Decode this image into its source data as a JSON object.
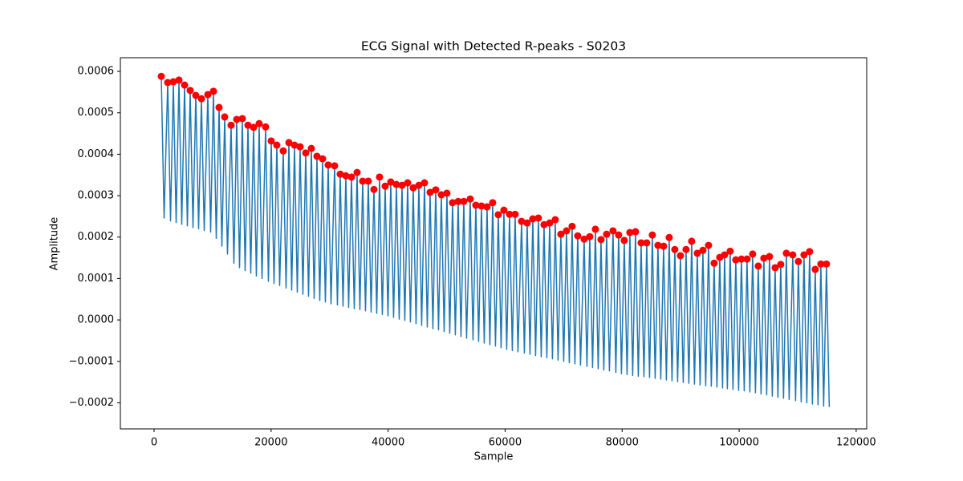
{
  "chart_data": {
    "type": "line",
    "title": "ECG Signal with Detected R-peaks - S0203",
    "xlabel": "Sample",
    "ylabel": "Amplitude",
    "xlim": [
      -5760,
      121800
    ],
    "ylim": [
      -0.000263,
      0.000633
    ],
    "xticks": [
      0,
      20000,
      40000,
      60000,
      80000,
      100000,
      120000
    ],
    "yticks": [
      {
        "value": -0.0002,
        "label": "−0.0002"
      },
      {
        "value": -0.0001,
        "label": "−0.0001"
      },
      {
        "value": 0,
        "label": "0.0000"
      },
      0.0001,
      0.0002,
      0.0003,
      0.0004,
      0.0005,
      0.0006
    ],
    "grid": false,
    "series": [
      {
        "type": "line",
        "color": "#1f77b4",
        "x": [
          1234,
          1714,
          2331,
          2811,
          3291,
          3771,
          4251,
          4731,
          5211,
          5691,
          6171,
          6651,
          7131,
          7611,
          8091,
          8571,
          9188,
          9668,
          10148,
          10628,
          11108,
          11588,
          12068,
          12548,
          13165,
          13645,
          14125,
          14605,
          15085,
          15565,
          16045,
          16525,
          17005,
          17485,
          17965,
          18445,
          19062,
          19542,
          20022,
          20502,
          20982,
          21462,
          22080,
          22560,
          23040,
          23520,
          24000,
          24480,
          24959,
          25439,
          25919,
          26399,
          26879,
          27359,
          27839,
          28319,
          28799,
          29279,
          29759,
          30239,
          30856,
          31336,
          31816,
          32296,
          32776,
          33256,
          33736,
          34216,
          34696,
          35176,
          35656,
          36136,
          36616,
          37096,
          37576,
          38056,
          38536,
          39016,
          39496,
          39976,
          40456,
          40936,
          41416,
          41896,
          42376,
          42856,
          43336,
          43816,
          44296,
          44776,
          45256,
          45736,
          46216,
          46696,
          47176,
          47656,
          48136,
          48616,
          49096,
          49576,
          50056,
          50536,
          51016,
          51496,
          51976,
          52456,
          52936,
          53416,
          54033,
          54513,
          54993,
          55473,
          55953,
          56433,
          56913,
          57393,
          57873,
          58353,
          58833,
          59313,
          59793,
          60273,
          60753,
          61233,
          61713,
          62193,
          62810,
          63290,
          63770,
          64250,
          64730,
          65210,
          65690,
          66170,
          66650,
          67130,
          67610,
          68090,
          68570,
          69050,
          69530,
          70010,
          70490,
          70970,
          71450,
          71930,
          72410,
          72890,
          73507,
          73987,
          74467,
          74947,
          75427,
          75907,
          76387,
          76867,
          77347,
          77827,
          78444,
          78924,
          79404,
          79884,
          80364,
          80844,
          81324,
          81804,
          82284,
          82764,
          83244,
          83724,
          84204,
          84684,
          85164,
          85644,
          86124,
          86604,
          87084,
          87564,
          88044,
          88524,
          89004,
          89484,
          89964,
          90444,
          90924,
          91404,
          91884,
          92364,
          92844,
          93324,
          93804,
          94284,
          94764,
          95244,
          95724,
          96204,
          96684,
          97164,
          97507,
          97987,
          98467,
          98947,
          99427,
          99907,
          100387,
          100867,
          101347,
          101827,
          102307,
          102787,
          103267,
          103747,
          104226,
          104706,
          105186,
          105666,
          106146,
          106626,
          107106,
          107586,
          108066,
          108546,
          109163,
          109643,
          110123,
          110603,
          111083,
          111563,
          112043,
          112523,
          113003,
          113483,
          113963,
          114443,
          114923,
          115403
        ],
        "values": [
          0.000588,
          0.000246,
          0.000573,
          0.000239,
          0.000575,
          0.000235,
          0.000579,
          0.000231,
          0.000567,
          0.000227,
          0.000554,
          0.000223,
          0.000542,
          0.00022,
          0.000534,
          0.000216,
          0.000544,
          0.000212,
          0.000552,
          0.000197,
          0.000513,
          0.000178,
          0.00049,
          0.000159,
          0.00047,
          0.000137,
          0.000484,
          0.000126,
          0.000486,
          0.000119,
          0.00047,
          0.000113,
          0.000465,
          0.000106,
          0.000474,
          0.0001,
          0.000466,
          9.3e-05,
          0.000432,
          8.8e-05,
          0.000422,
          8.3e-05,
          0.000408,
          7.7e-05,
          0.000428,
          7.2e-05,
          0.000422,
          6.7e-05,
          0.000418,
          6.2e-05,
          0.000403,
          5.7e-05,
          0.000414,
          5.2e-05,
          0.000395,
          4.7e-05,
          0.000389,
          4.3e-05,
          0.000374,
          3.9e-05,
          0.000372,
          3.6e-05,
          0.000352,
          3.3e-05,
          0.000348,
          3e-05,
          0.000345,
          2.7e-05,
          0.000356,
          2.5e-05,
          0.000335,
          2.2e-05,
          0.000335,
          1.9e-05,
          0.000315,
          1.6e-05,
          0.000345,
          1.3e-05,
          0.000323,
          1e-05,
          0.000333,
          6e-06,
          0.000327,
          2e-06,
          0.000325,
          -1e-06,
          0.000331,
          -5e-06,
          0.000319,
          -9e-06,
          0.000325,
          -1.3e-05,
          0.000331,
          -1.7e-05,
          0.000308,
          -2.1e-05,
          0.000314,
          -2.4e-05,
          0.000302,
          -2.8e-05,
          0.000306,
          -3.2e-05,
          0.000283,
          -3.6e-05,
          0.000286,
          -4e-05,
          0.000286,
          -4.4e-05,
          0.000292,
          -4.8e-05,
          0.000277,
          -5.2e-05,
          0.000275,
          -5.6e-05,
          0.000273,
          -6e-05,
          0.000283,
          -6.3e-05,
          0.000254,
          -6.7e-05,
          0.000265,
          -7.1e-05,
          0.000255,
          -7.4e-05,
          0.000255,
          -7.7e-05,
          0.000238,
          -8e-05,
          0.000234,
          -8.3e-05,
          0.000244,
          -8.6e-05,
          0.000246,
          -8.9e-05,
          0.00023,
          -9.1e-05,
          0.000234,
          -9.4e-05,
          0.000242,
          -9.7e-05,
          0.000207,
          -0.0001,
          0.000215,
          -0.000103,
          0.000226,
          -0.000106,
          0.000203,
          -0.000109,
          0.000195,
          -0.000112,
          0.000201,
          -0.000115,
          0.000219,
          -0.000118,
          0.000194,
          -0.000121,
          0.000207,
          -0.000123,
          0.000215,
          -0.000127,
          0.000205,
          -0.00013,
          0.000192,
          -0.000132,
          0.000211,
          -0.000134,
          0.000213,
          -0.000136,
          0.000186,
          -0.000137,
          0.000186,
          -0.000139,
          0.000205,
          -0.000141,
          0.00018,
          -0.000143,
          0.000178,
          -0.000145,
          0.000199,
          -0.000147,
          0.00017,
          -0.000149,
          0.000155,
          -0.000151,
          0.00017,
          -0.000153,
          0.00019,
          -0.000155,
          0.000161,
          -0.000157,
          0.000168,
          -0.000159,
          0.00018,
          -0.00016,
          0.000137,
          -0.000162,
          0.000151,
          -0.000164,
          0.000157,
          -0.000166,
          0.000166,
          -0.000168,
          0.000145,
          -0.00017,
          0.000147,
          -0.000171,
          0.000147,
          -0.000174,
          0.000159,
          -0.000176,
          0.00013,
          -0.000179,
          0.000149,
          -0.000181,
          0.000153,
          -0.000184,
          0.000126,
          -0.000187,
          0.000134,
          -0.000189,
          0.000161,
          -0.000192,
          0.000157,
          -0.000195,
          0.000141,
          -0.000198,
          0.000157,
          -0.0002,
          0.000165,
          -0.000203,
          0.000122,
          -0.000205,
          0.000135,
          -0.000208,
          0.000135,
          -0.00021
        ]
      },
      {
        "type": "scatter",
        "color": "#ff0000",
        "x": [
          1234,
          2331,
          3291,
          4251,
          5211,
          6171,
          7131,
          8091,
          9188,
          10148,
          11108,
          12068,
          13165,
          14125,
          15085,
          16045,
          17005,
          17965,
          19062,
          20022,
          20982,
          22080,
          23040,
          24000,
          24959,
          25919,
          26879,
          27839,
          28799,
          29759,
          30856,
          31816,
          32776,
          33736,
          34696,
          35656,
          36616,
          37576,
          38536,
          39496,
          40456,
          41416,
          42376,
          43336,
          44296,
          45256,
          46216,
          47176,
          48136,
          49096,
          50056,
          51016,
          51976,
          52936,
          54033,
          54993,
          55953,
          56913,
          57873,
          58833,
          59793,
          60753,
          61713,
          62810,
          63770,
          64730,
          65690,
          66650,
          67610,
          68570,
          69530,
          70490,
          71450,
          72410,
          73507,
          74467,
          75427,
          76387,
          77347,
          78444,
          79404,
          80364,
          81324,
          82284,
          83244,
          84204,
          85164,
          86124,
          87084,
          88044,
          89004,
          89964,
          90924,
          91884,
          92844,
          93804,
          94764,
          95724,
          96684,
          97507,
          98467,
          99427,
          100387,
          101347,
          102307,
          103267,
          104226,
          105186,
          106146,
          107106,
          108066,
          109163,
          110123,
          111083,
          112043,
          113003,
          113963,
          114923
        ],
        "values": [
          0.000588,
          0.000573,
          0.000575,
          0.000579,
          0.000567,
          0.000554,
          0.000542,
          0.000534,
          0.000544,
          0.000552,
          0.000513,
          0.00049,
          0.00047,
          0.000484,
          0.000486,
          0.00047,
          0.000465,
          0.000474,
          0.000466,
          0.000432,
          0.000422,
          0.000408,
          0.000428,
          0.000422,
          0.000418,
          0.000403,
          0.000414,
          0.000395,
          0.000389,
          0.000374,
          0.000372,
          0.000352,
          0.000348,
          0.000345,
          0.000356,
          0.000335,
          0.000335,
          0.000315,
          0.000345,
          0.000323,
          0.000333,
          0.000327,
          0.000325,
          0.000331,
          0.000319,
          0.000325,
          0.000331,
          0.000308,
          0.000314,
          0.000302,
          0.000306,
          0.000283,
          0.000286,
          0.000286,
          0.000292,
          0.000277,
          0.000275,
          0.000273,
          0.000283,
          0.000254,
          0.000265,
          0.000255,
          0.000255,
          0.000238,
          0.000234,
          0.000244,
          0.000246,
          0.00023,
          0.000234,
          0.000242,
          0.000207,
          0.000215,
          0.000226,
          0.000203,
          0.000195,
          0.000201,
          0.000219,
          0.000194,
          0.000207,
          0.000215,
          0.000205,
          0.000192,
          0.000211,
          0.000213,
          0.000186,
          0.000186,
          0.000205,
          0.00018,
          0.000178,
          0.000199,
          0.00017,
          0.000155,
          0.00017,
          0.00019,
          0.000161,
          0.000168,
          0.00018,
          0.000137,
          0.000151,
          0.000157,
          0.000166,
          0.000145,
          0.000147,
          0.000147,
          0.000159,
          0.00013,
          0.000149,
          0.000153,
          0.000126,
          0.000134,
          0.000161,
          0.000157,
          0.000141,
          0.000157,
          0.000165,
          0.000122,
          0.000135,
          0.000135
        ]
      }
    ]
  }
}
